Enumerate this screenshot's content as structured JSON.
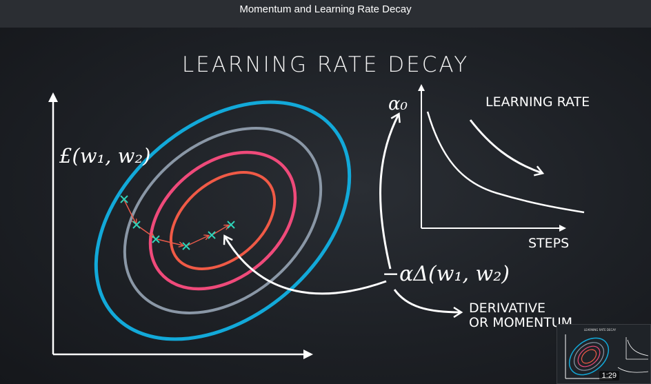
{
  "window": {
    "title": "Momentum and Learning Rate Decay"
  },
  "slide": {
    "title": "LEARNING RATE DECAY",
    "loss_label": "£(w₁, w₂)",
    "alpha0_label": "α₀",
    "update_label": "−αΔ(w₁, w₂)",
    "learning_rate_label": "LEARNING RATE",
    "steps_label": "STEPS",
    "derivative_line1": "DERIVATIVE",
    "derivative_line2": "OR MOMENTUM"
  },
  "contour_colors": {
    "outer": "#12a9d9",
    "second": "#8a97a6",
    "third": "#ef4a7a",
    "inner": "#f05a46"
  },
  "path_colors": {
    "marker": "#2fd3b9",
    "arrow": "#e85a4a"
  },
  "thumbnail": {
    "time": "1:29",
    "heading": "LEARNING RATE DECAY"
  }
}
